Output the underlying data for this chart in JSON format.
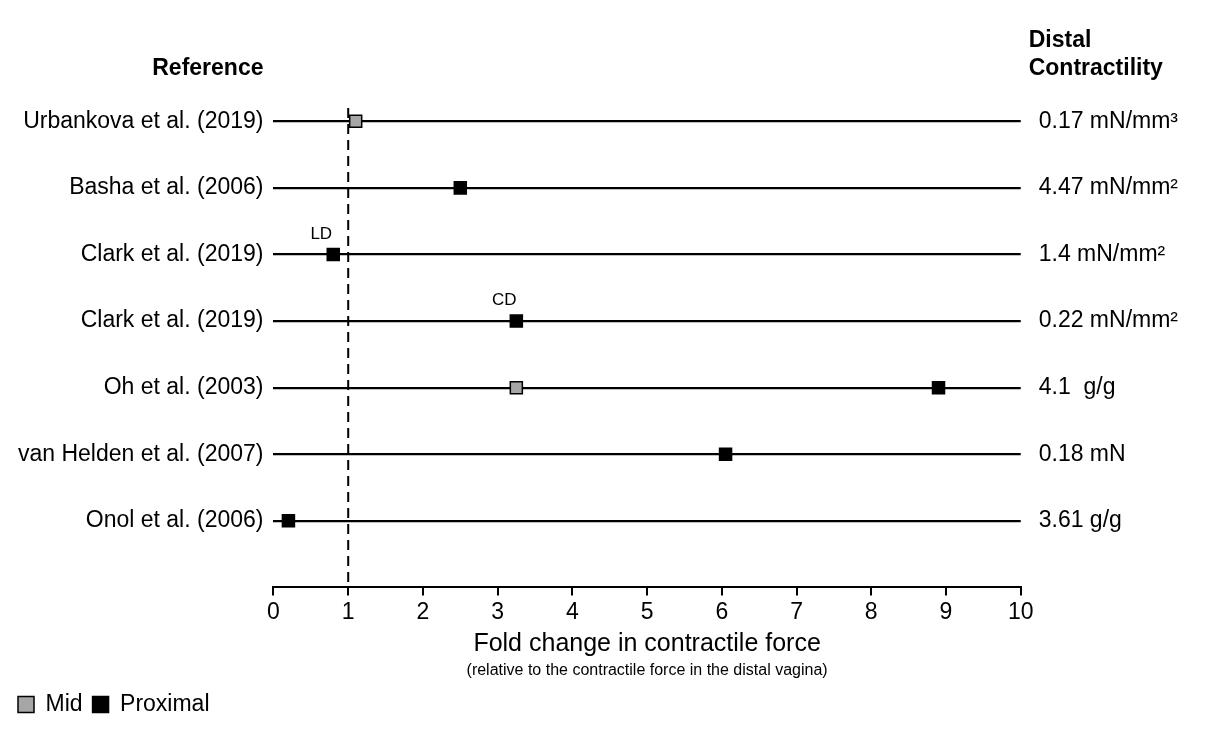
{
  "chart_data": {
    "type": "scatter",
    "orientation": "horizontal",
    "ylabel": "Reference",
    "y2label": "Distal Contractility",
    "xlabel": "Fold change in contractile force",
    "categories": [
      "Urbankova et al. (2019)",
      "Basha et al. (2006)",
      "Clark et al. (2019)",
      "Clark et al. (2019)",
      "Oh et al. (2003)",
      "van Helden et al. (2007)",
      "Onol et al. (2006)"
    ],
    "y2_categories": [
      "0.17 mN/mm³",
      "4.47 mN/mm²",
      "1.4 mN/mm²",
      "0.22 mN/mm²",
      "4.1  g/g",
      "0.18 mN",
      "3.61 g/g"
    ],
    "series": [
      {
        "name": "Mid",
        "color": "#a6a6a6",
        "values": [
          1.1,
          null,
          null,
          null,
          3.25,
          null,
          null
        ]
      },
      {
        "name": "Proximal",
        "color": "#000000",
        "values": [
          null,
          2.5,
          0.8,
          3.25,
          8.9,
          6.05,
          0.2
        ],
        "value_labels": [
          null,
          null,
          "LD",
          "CD",
          null,
          null,
          null
        ]
      }
    ],
    "xlim": [
      0,
      10
    ],
    "xticks": [
      0,
      1,
      2,
      3,
      4,
      5,
      6,
      7,
      8,
      9,
      10
    ],
    "grid": "y",
    "marker": "square",
    "legend": "bottom left",
    "ref_lines": [
      {
        "axis": "x",
        "value": 1,
        "line_style": "dashed",
        "color": "#000000"
      }
    ],
    "annotations": [
      "(relative to the contractile force in the distal vagina)"
    ]
  }
}
